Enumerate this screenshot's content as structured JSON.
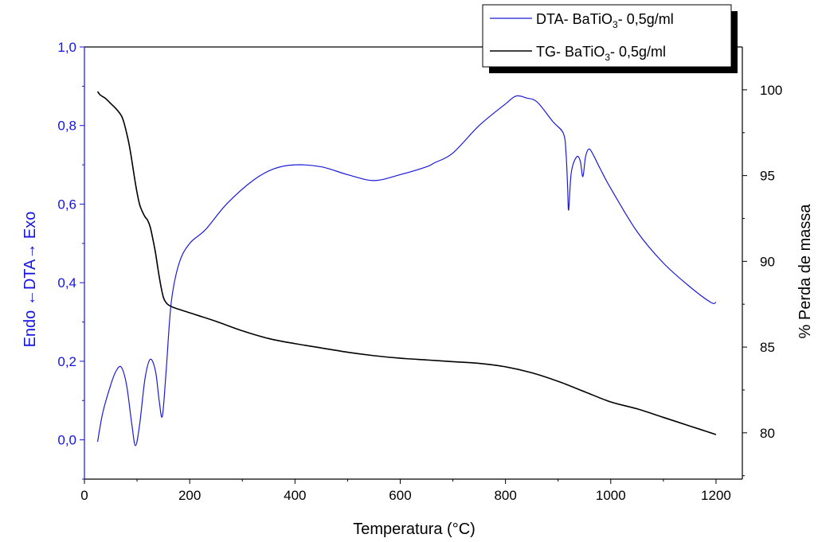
{
  "chart_data": {
    "type": "line",
    "xlabel": "Temperatura (°C)",
    "ylabel_left": "Endo ←DTA→ Exo",
    "ylabel_right": "% Perda de massa",
    "xlim": [
      0,
      1250
    ],
    "ylim_left": [
      -0.1,
      1.0
    ],
    "ylim_right": [
      77.3,
      102.5
    ],
    "x_ticks": [
      0,
      200,
      400,
      600,
      800,
      1000,
      1200
    ],
    "x_tick_labels": [
      "0",
      "200",
      "400",
      "600",
      "800",
      "1000",
      "1200"
    ],
    "y_left_ticks": [
      0.0,
      0.2,
      0.4,
      0.6,
      0.8,
      1.0
    ],
    "y_left_tick_labels": [
      "0,0",
      "0,2",
      "0,4",
      "0,6",
      "0,8",
      "1,0"
    ],
    "y_right_ticks": [
      80,
      85,
      90,
      95,
      100
    ],
    "y_right_tick_labels": [
      "80",
      "85",
      "90",
      "95",
      "100"
    ],
    "grid": false,
    "legend_position": "top-right",
    "colors": {
      "dta": "#1a1adc",
      "tg": "#000000",
      "left_axis": "#1414e6",
      "right_axis": "#000000"
    },
    "series": [
      {
        "name": "DTA- BaTiO3- 0,5g/ml",
        "legend_main": "DTA- BaTiO",
        "legend_sub": "3",
        "legend_tail": "- 0,5g/ml",
        "axis": "left",
        "x": [
          25,
          35,
          50,
          60,
          70,
          80,
          90,
          97,
          105,
          115,
          125,
          135,
          142,
          148,
          155,
          165,
          180,
          200,
          230,
          270,
          320,
          360,
          400,
          450,
          500,
          550,
          600,
          650,
          665,
          700,
          750,
          800,
          820,
          840,
          860,
          890,
          910,
          915,
          918,
          920,
          925,
          935,
          942,
          947,
          952,
          958,
          965,
          980,
          1000,
          1050,
          1100,
          1150,
          1190,
          1200
        ],
        "y": [
          -0.005,
          0.07,
          0.14,
          0.175,
          0.185,
          0.14,
          0.04,
          -0.015,
          0.04,
          0.155,
          0.205,
          0.175,
          0.1,
          0.06,
          0.17,
          0.35,
          0.45,
          0.5,
          0.535,
          0.6,
          0.66,
          0.69,
          0.7,
          0.695,
          0.675,
          0.66,
          0.675,
          0.695,
          0.705,
          0.73,
          0.8,
          0.855,
          0.875,
          0.87,
          0.86,
          0.81,
          0.78,
          0.73,
          0.645,
          0.585,
          0.68,
          0.72,
          0.71,
          0.67,
          0.72,
          0.74,
          0.73,
          0.69,
          0.64,
          0.53,
          0.45,
          0.39,
          0.35,
          0.35
        ]
      },
      {
        "name": "TG- BaTiO3- 0,5g/ml",
        "legend_main": "TG- BaTiO",
        "legend_sub": "3",
        "legend_tail": "- 0,5g/ml",
        "axis": "right",
        "x": [
          25,
          30,
          40,
          50,
          60,
          70,
          75,
          80,
          85,
          90,
          95,
          100,
          105,
          110,
          115,
          120,
          125,
          130,
          135,
          140,
          145,
          150,
          155,
          160,
          170,
          200,
          250,
          300,
          350,
          400,
          450,
          500,
          550,
          600,
          650,
          700,
          750,
          800,
          850,
          900,
          950,
          1000,
          1050,
          1100,
          1150,
          1200
        ],
        "y": [
          99.9,
          99.7,
          99.5,
          99.2,
          98.9,
          98.5,
          98.1,
          97.5,
          96.8,
          95.9,
          94.9,
          94.0,
          93.3,
          92.9,
          92.6,
          92.4,
          92.0,
          91.3,
          90.5,
          89.5,
          88.6,
          87.9,
          87.6,
          87.45,
          87.3,
          87.0,
          86.5,
          85.95,
          85.5,
          85.2,
          84.95,
          84.7,
          84.5,
          84.35,
          84.25,
          84.15,
          84.05,
          83.85,
          83.5,
          83.0,
          82.4,
          81.8,
          81.4,
          80.9,
          80.4,
          79.9
        ]
      }
    ]
  }
}
